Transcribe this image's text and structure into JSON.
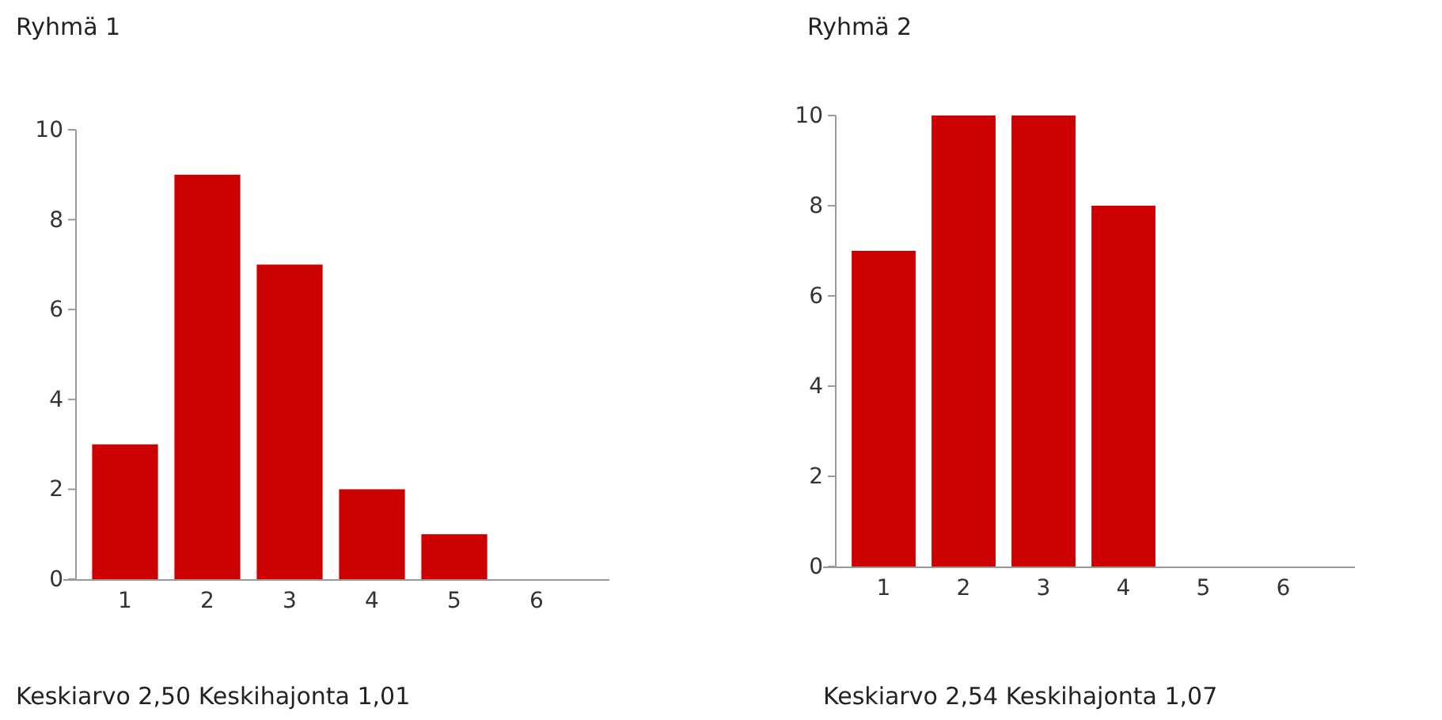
{
  "chart_data": [
    {
      "type": "bar",
      "title": "Ryhmä 1",
      "categories": [
        "1",
        "2",
        "3",
        "4",
        "5",
        "6"
      ],
      "values": [
        3,
        9,
        7,
        2,
        1,
        0
      ],
      "color": "#cc0000",
      "ylim": [
        0,
        10
      ],
      "yticks": [
        0,
        2,
        4,
        6,
        8,
        10
      ],
      "grid": false,
      "annotations": [
        "Keskiarvo 2,50 Keskihajonta 1,01"
      ]
    },
    {
      "type": "bar",
      "title": "Ryhmä 2",
      "categories": [
        "1",
        "2",
        "3",
        "4",
        "5",
        "6"
      ],
      "values": [
        7,
        10,
        10,
        8,
        0,
        0
      ],
      "color": "#cc0000",
      "ylim": [
        0,
        10
      ],
      "yticks": [
        0,
        2,
        4,
        6,
        8,
        10
      ],
      "grid": false,
      "annotations": [
        "Keskiarvo 2,54 Keskihajonta 1,07"
      ]
    }
  ]
}
